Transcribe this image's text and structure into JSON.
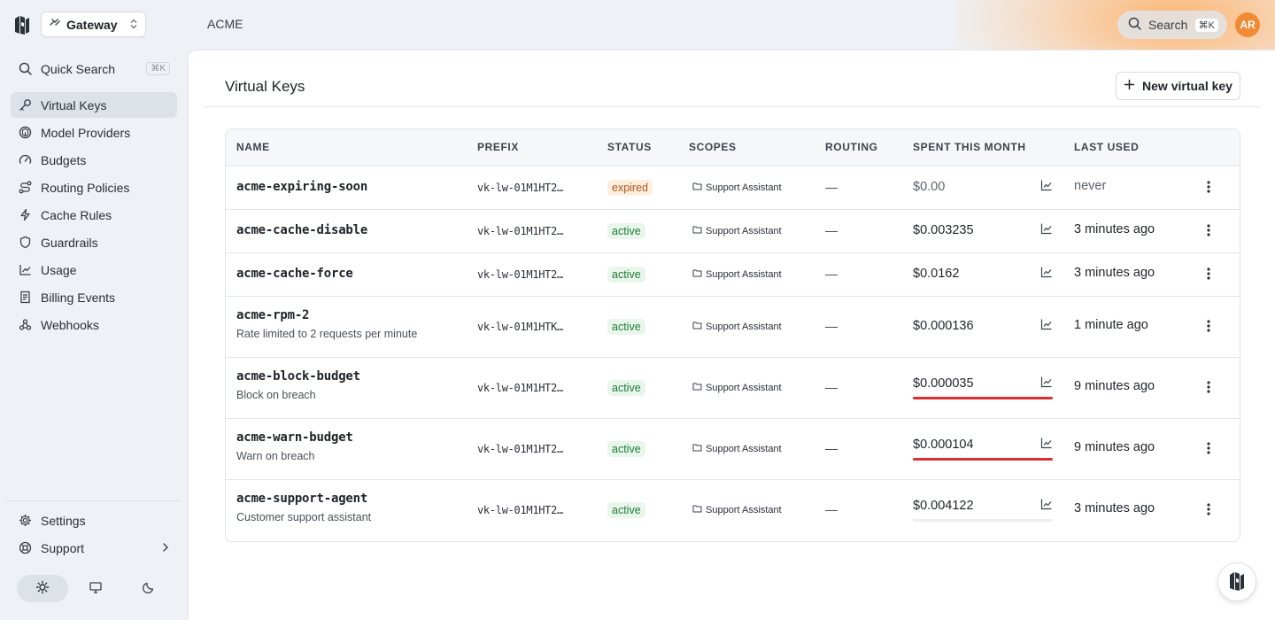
{
  "sidebar": {
    "workspace_label": "Gateway",
    "quick_search": {
      "label": "Quick Search",
      "kbd": "⌘K",
      "icon": "search-icon"
    },
    "items": [
      {
        "label": "Virtual Keys",
        "icon": "key-icon",
        "active": true
      },
      {
        "label": "Model Providers",
        "icon": "cube-icon",
        "active": false
      },
      {
        "label": "Budgets",
        "icon": "gauge-icon",
        "active": false
      },
      {
        "label": "Routing Policies",
        "icon": "route-icon",
        "active": false
      },
      {
        "label": "Cache Rules",
        "icon": "zap-icon",
        "active": false
      },
      {
        "label": "Guardrails",
        "icon": "shield-icon",
        "active": false
      },
      {
        "label": "Usage",
        "icon": "chart-icon",
        "active": false
      },
      {
        "label": "Billing Events",
        "icon": "receipt-icon",
        "active": false
      },
      {
        "label": "Webhooks",
        "icon": "webhook-icon",
        "active": false
      }
    ],
    "bottom": {
      "settings": "Settings",
      "support": "Support"
    },
    "theme_active": "light"
  },
  "header": {
    "breadcrumb": "ACME",
    "search_label": "Search",
    "search_kbd": "⌘K",
    "avatar_initials": "AR",
    "accent_color": "#f08a35"
  },
  "page": {
    "title": "Virtual Keys",
    "new_button": "New virtual key"
  },
  "table": {
    "columns": [
      "NAME",
      "PREFIX",
      "STATUS",
      "SCOPES",
      "ROUTING",
      "SPENT THIS MONTH",
      "LAST USED"
    ],
    "rows": [
      {
        "name": "acme-expiring-soon",
        "description": "",
        "prefix": "vk-lw-01M1HT2…",
        "status": "expired",
        "scope": "Support Assistant",
        "routing": "—",
        "spent": "$0.00",
        "budget_fraction": null,
        "last_used": "never"
      },
      {
        "name": "acme-cache-disable",
        "description": "",
        "prefix": "vk-lw-01M1HT2…",
        "status": "active",
        "scope": "Support Assistant",
        "routing": "—",
        "spent": "$0.003235",
        "budget_fraction": null,
        "last_used": "3 minutes ago"
      },
      {
        "name": "acme-cache-force",
        "description": "",
        "prefix": "vk-lw-01M1HT2…",
        "status": "active",
        "scope": "Support Assistant",
        "routing": "—",
        "spent": "$0.0162",
        "budget_fraction": null,
        "last_used": "3 minutes ago"
      },
      {
        "name": "acme-rpm-2",
        "description": "Rate limited to 2 requests per minute",
        "prefix": "vk-lw-01M1HTK…",
        "status": "active",
        "scope": "Support Assistant",
        "routing": "—",
        "spent": "$0.000136",
        "budget_fraction": null,
        "last_used": "1 minute ago"
      },
      {
        "name": "acme-block-budget",
        "description": "Block on breach",
        "prefix": "vk-lw-01M1HT2…",
        "status": "active",
        "scope": "Support Assistant",
        "routing": "—",
        "spent": "$0.000035",
        "budget_fraction": 1.0,
        "last_used": "9 minutes ago"
      },
      {
        "name": "acme-warn-budget",
        "description": "Warn on breach",
        "prefix": "vk-lw-01M1HT2…",
        "status": "active",
        "scope": "Support Assistant",
        "routing": "—",
        "spent": "$0.000104",
        "budget_fraction": 1.0,
        "last_used": "9 minutes ago"
      },
      {
        "name": "acme-support-agent",
        "description": "Customer support assistant",
        "prefix": "vk-lw-01M1HT2…",
        "status": "active",
        "scope": "Support Assistant",
        "routing": "—",
        "spent": "$0.004122",
        "budget_fraction": 0.0,
        "last_used": "3 minutes ago"
      }
    ]
  },
  "colors": {
    "over_budget": "#dc2f2f",
    "active_badge": "#1f7a36",
    "expired_badge": "#b5541a"
  }
}
